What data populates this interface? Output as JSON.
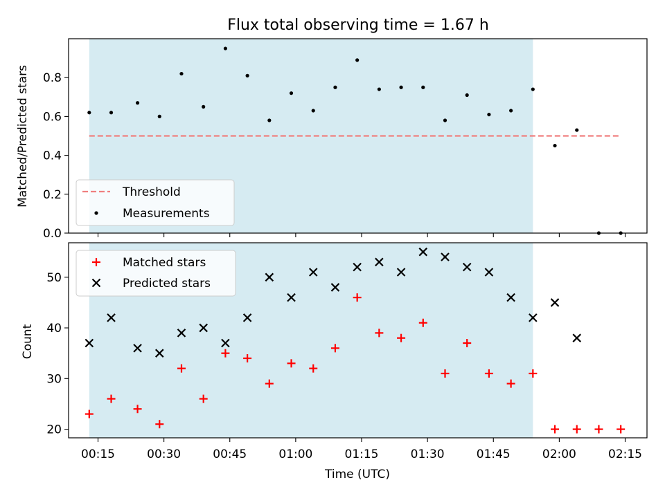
{
  "title": "Flux total observing time = 1.67 h",
  "colors": {
    "shade": "#add8e6",
    "threshold": "#f07f7f",
    "measurement": "#000000",
    "matched": "#ff0000",
    "predicted": "#000000"
  },
  "chart_data": [
    {
      "type": "scatter",
      "ylabel": "Matched/Predicted stars",
      "ylim": [
        0,
        1.0
      ],
      "yticks": [
        "0.0",
        "0.2",
        "0.4",
        "0.6",
        "0.8"
      ],
      "grid": false,
      "legend_position": "lower-left",
      "shaded_span": [
        "00:13",
        "01:54"
      ],
      "threshold": {
        "name": "Threshold",
        "y": 0.5,
        "x_range": [
          "00:13",
          "02:14"
        ]
      },
      "series": [
        {
          "name": "Measurements",
          "x": [
            "00:13",
            "00:18",
            "00:24",
            "00:29",
            "00:34",
            "00:39",
            "00:44",
            "00:49",
            "00:54",
            "00:59",
            "01:04",
            "01:09",
            "01:14",
            "01:19",
            "01:24",
            "01:29",
            "01:34",
            "01:39",
            "01:44",
            "01:49",
            "01:54",
            "01:59",
            "02:04",
            "02:09",
            "02:14"
          ],
          "values": [
            0.62,
            0.62,
            0.67,
            0.6,
            0.82,
            0.65,
            0.95,
            0.81,
            0.58,
            0.72,
            0.63,
            0.75,
            0.89,
            0.74,
            0.75,
            0.75,
            0.58,
            0.71,
            0.61,
            0.63,
            0.74,
            0.45,
            0.53,
            0.0,
            0.0
          ]
        }
      ]
    },
    {
      "type": "scatter",
      "xlabel": "Time (UTC)",
      "ylabel": "Count",
      "ylim": [
        18.3,
        56.8
      ],
      "yticks": [
        "20",
        "30",
        "40",
        "50"
      ],
      "xticks": [
        "00:15",
        "00:30",
        "00:45",
        "01:00",
        "01:15",
        "01:30",
        "01:45",
        "02:00",
        "02:15"
      ],
      "grid": false,
      "legend_position": "upper-left",
      "shaded_span": [
        "00:13",
        "01:54"
      ],
      "series": [
        {
          "name": "Matched stars",
          "x": [
            "00:13",
            "00:18",
            "00:24",
            "00:29",
            "00:34",
            "00:39",
            "00:44",
            "00:49",
            "00:54",
            "00:59",
            "01:04",
            "01:09",
            "01:14",
            "01:19",
            "01:24",
            "01:29",
            "01:34",
            "01:39",
            "01:44",
            "01:49",
            "01:54",
            "01:59",
            "02:04",
            "02:09",
            "02:14"
          ],
          "values": [
            23,
            26,
            24,
            21,
            32,
            26,
            35,
            34,
            29,
            33,
            32,
            36,
            46,
            39,
            38,
            41,
            31,
            37,
            31,
            29,
            31,
            20,
            20,
            20,
            20
          ]
        },
        {
          "name": "Predicted stars",
          "x": [
            "00:13",
            "00:18",
            "00:24",
            "00:29",
            "00:34",
            "00:39",
            "00:44",
            "00:49",
            "00:54",
            "00:59",
            "01:04",
            "01:09",
            "01:14",
            "01:19",
            "01:24",
            "01:29",
            "01:34",
            "01:39",
            "01:44",
            "01:49",
            "01:54",
            "01:59",
            "02:04"
          ],
          "values": [
            37,
            42,
            36,
            35,
            39,
            40,
            37,
            42,
            50,
            46,
            51,
            48,
            52,
            53,
            51,
            55,
            54,
            52,
            51,
            46,
            42,
            45,
            38
          ]
        }
      ]
    }
  ]
}
